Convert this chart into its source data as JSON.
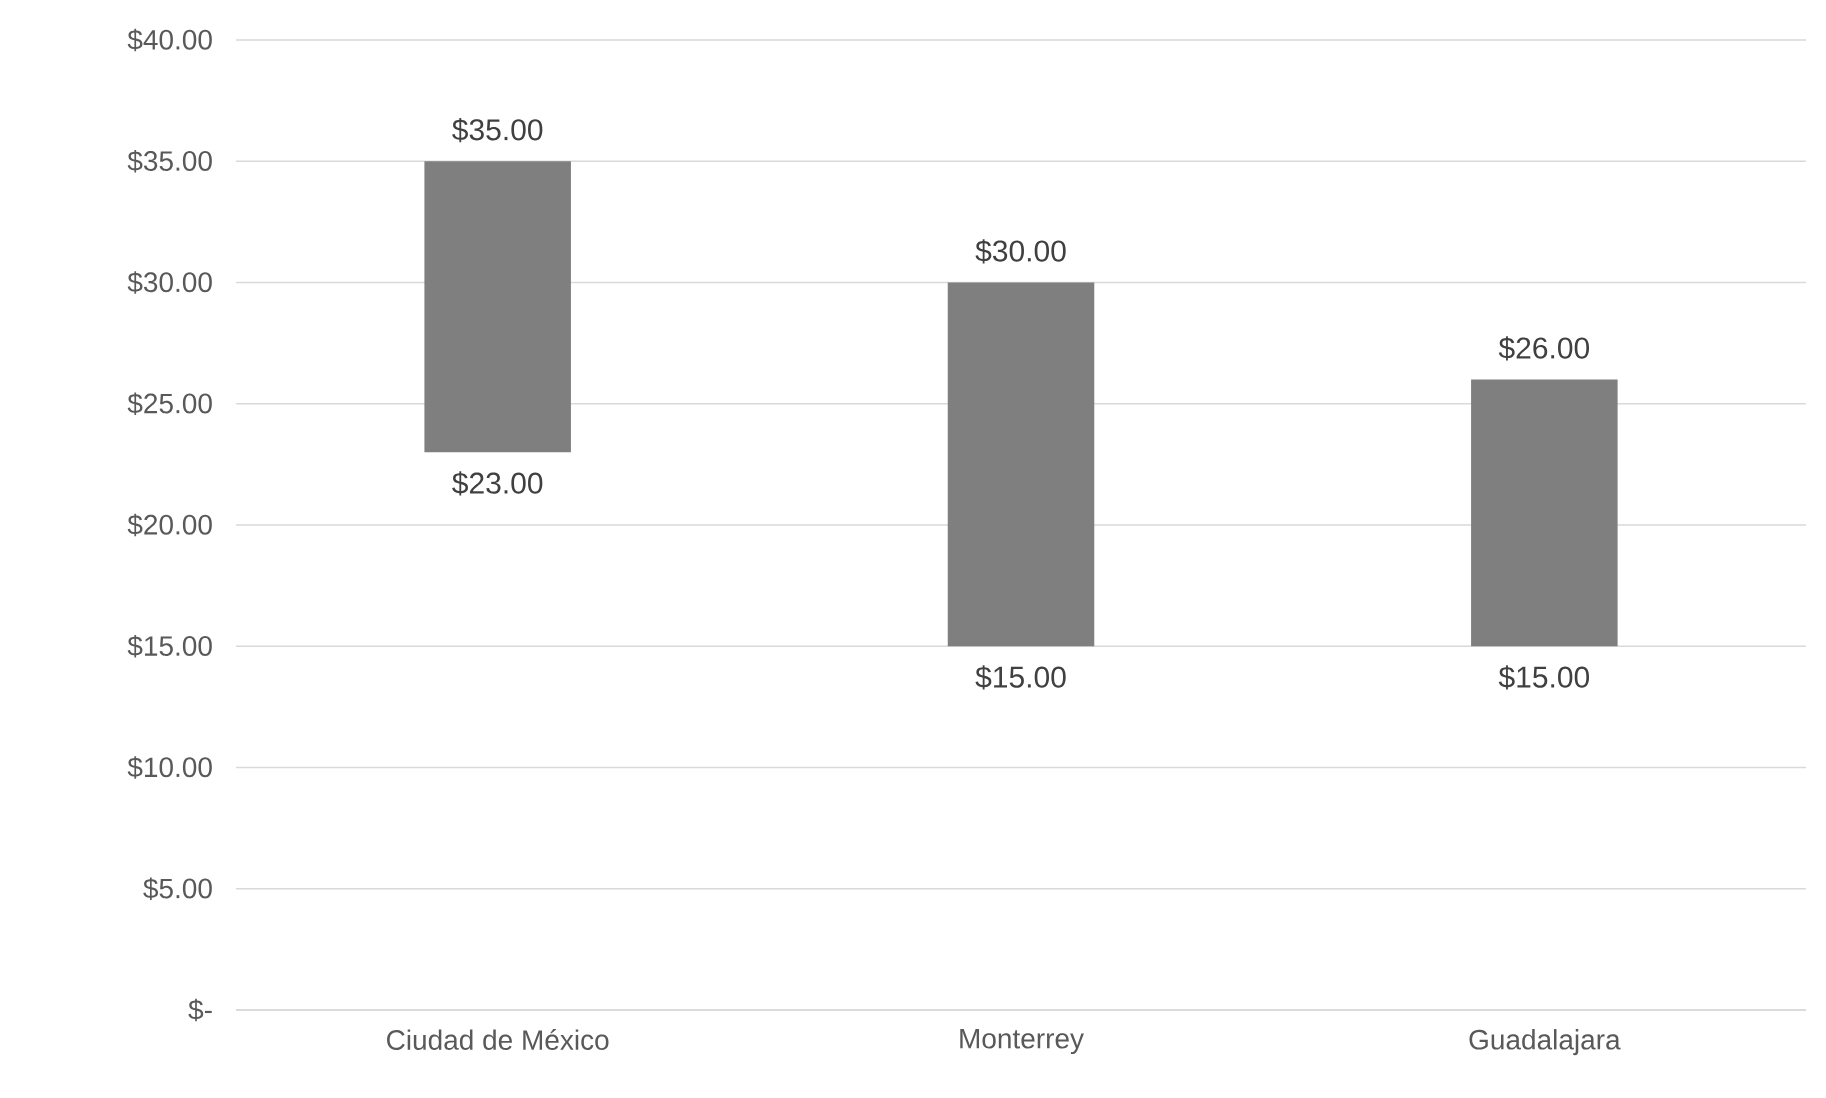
{
  "chart_data": {
    "type": "bar",
    "categories": [
      "Ciudad de México",
      "Monterrey",
      "Guadalajara"
    ],
    "values": [
      12,
      15,
      11
    ],
    "base": [
      23,
      15,
      15
    ],
    "color": "#7f7f7f",
    "ylim": [
      0,
      40
    ],
    "yticks": [
      {
        "value": 0,
        "label": "$-"
      },
      {
        "value": 5,
        "label": "$5.00"
      },
      {
        "value": 10,
        "label": "$10.00"
      },
      {
        "value": 15,
        "label": "$15.00"
      },
      {
        "value": 20,
        "label": "$20.00"
      },
      {
        "value": 25,
        "label": "$25.00"
      },
      {
        "value": 30,
        "label": "$30.00"
      },
      {
        "value": 35,
        "label": "$35.00"
      },
      {
        "value": 40,
        "label": "$40.00"
      }
    ],
    "grid": "y",
    "annotations": [
      {
        "text": "$35.00",
        "x": "Ciudad de México",
        "y": 35
      },
      {
        "text": "$23.00",
        "x": "Ciudad de México",
        "y": 23
      },
      {
        "text": "$30.00",
        "x": "Monterrey",
        "y": 30
      },
      {
        "text": "$15.00",
        "x": "Monterrey",
        "y": 15
      },
      {
        "text": "$26.00",
        "x": "Guadalajara",
        "y": 26
      },
      {
        "text": "$15.00",
        "x": "Guadalajara",
        "y": 15
      }
    ]
  }
}
